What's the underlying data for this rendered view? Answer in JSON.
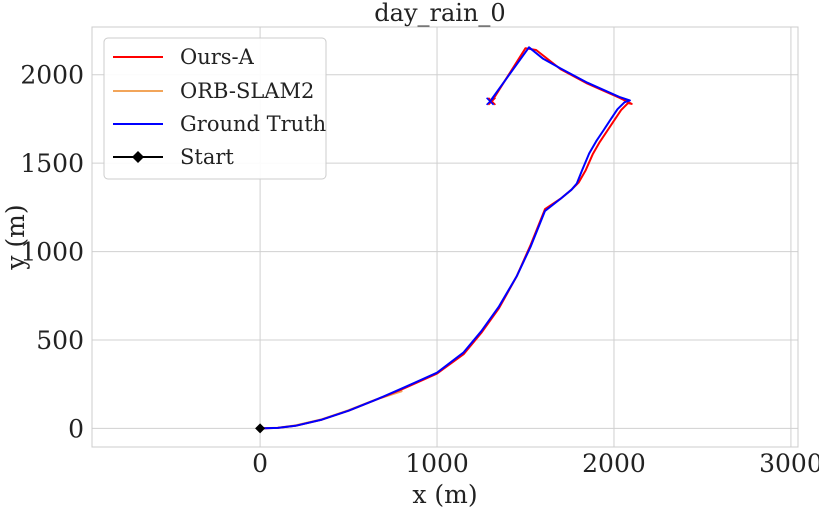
{
  "chart_data": {
    "type": "line",
    "title": "day_rain_0",
    "xlabel": "x (m)",
    "ylabel": "y (m)",
    "xlim": [
      -950,
      3040
    ],
    "ylim": [
      -105,
      2270
    ],
    "xticks": [
      0,
      1000,
      2000,
      3000
    ],
    "yticks": [
      0,
      500,
      1000,
      1500,
      2000
    ],
    "grid": true,
    "legend_position": "top-left",
    "series": [
      {
        "name": "Ours-A",
        "color": "#ff0000",
        "x": [
          0,
          100,
          200,
          350,
          500,
          650,
          800,
          1000,
          1150,
          1250,
          1350,
          1450,
          1530,
          1610,
          1700,
          1760,
          1800,
          1840,
          1880,
          1920,
          1960,
          2000,
          2040,
          2080,
          2100,
          2030,
          1850,
          1700,
          1560,
          1500,
          1310
        ],
        "y": [
          0,
          3,
          15,
          50,
          100,
          160,
          220,
          310,
          420,
          540,
          680,
          860,
          1040,
          1240,
          1300,
          1350,
          1390,
          1460,
          1550,
          1620,
          1680,
          1740,
          1800,
          1840,
          1835,
          1870,
          1950,
          2030,
          2140,
          2150,
          1850
        ]
      },
      {
        "name": "ORB-SLAM2",
        "color": "#f2a55a",
        "x": [
          0,
          100,
          200,
          350,
          500,
          650,
          800
        ],
        "y": [
          0,
          4,
          17,
          52,
          103,
          162,
          210
        ]
      },
      {
        "name": "Ground Truth",
        "color": "#0000ff",
        "x": [
          0,
          100,
          200,
          350,
          500,
          650,
          800,
          1000,
          1150,
          1250,
          1350,
          1450,
          1530,
          1610,
          1700,
          1760,
          1790,
          1820,
          1860,
          1900,
          1940,
          1980,
          2020,
          2060,
          2090,
          2030,
          1850,
          1700,
          1600,
          1520,
          1300
        ],
        "y": [
          0,
          3,
          15,
          50,
          100,
          160,
          225,
          315,
          430,
          550,
          690,
          860,
          1030,
          1230,
          1300,
          1350,
          1385,
          1460,
          1555,
          1625,
          1685,
          1745,
          1805,
          1845,
          1855,
          1875,
          1955,
          2035,
          2090,
          2155,
          1850
        ]
      }
    ],
    "start": {
      "name": "Start",
      "color": "#000000",
      "x": 0,
      "y": 0
    },
    "end_markers": [
      {
        "series": "Ours-A",
        "x": 1310,
        "y": 1850,
        "color": "#ff0000"
      },
      {
        "series": "Ground Truth",
        "x": 1300,
        "y": 1850,
        "color": "#0000ff"
      }
    ]
  }
}
